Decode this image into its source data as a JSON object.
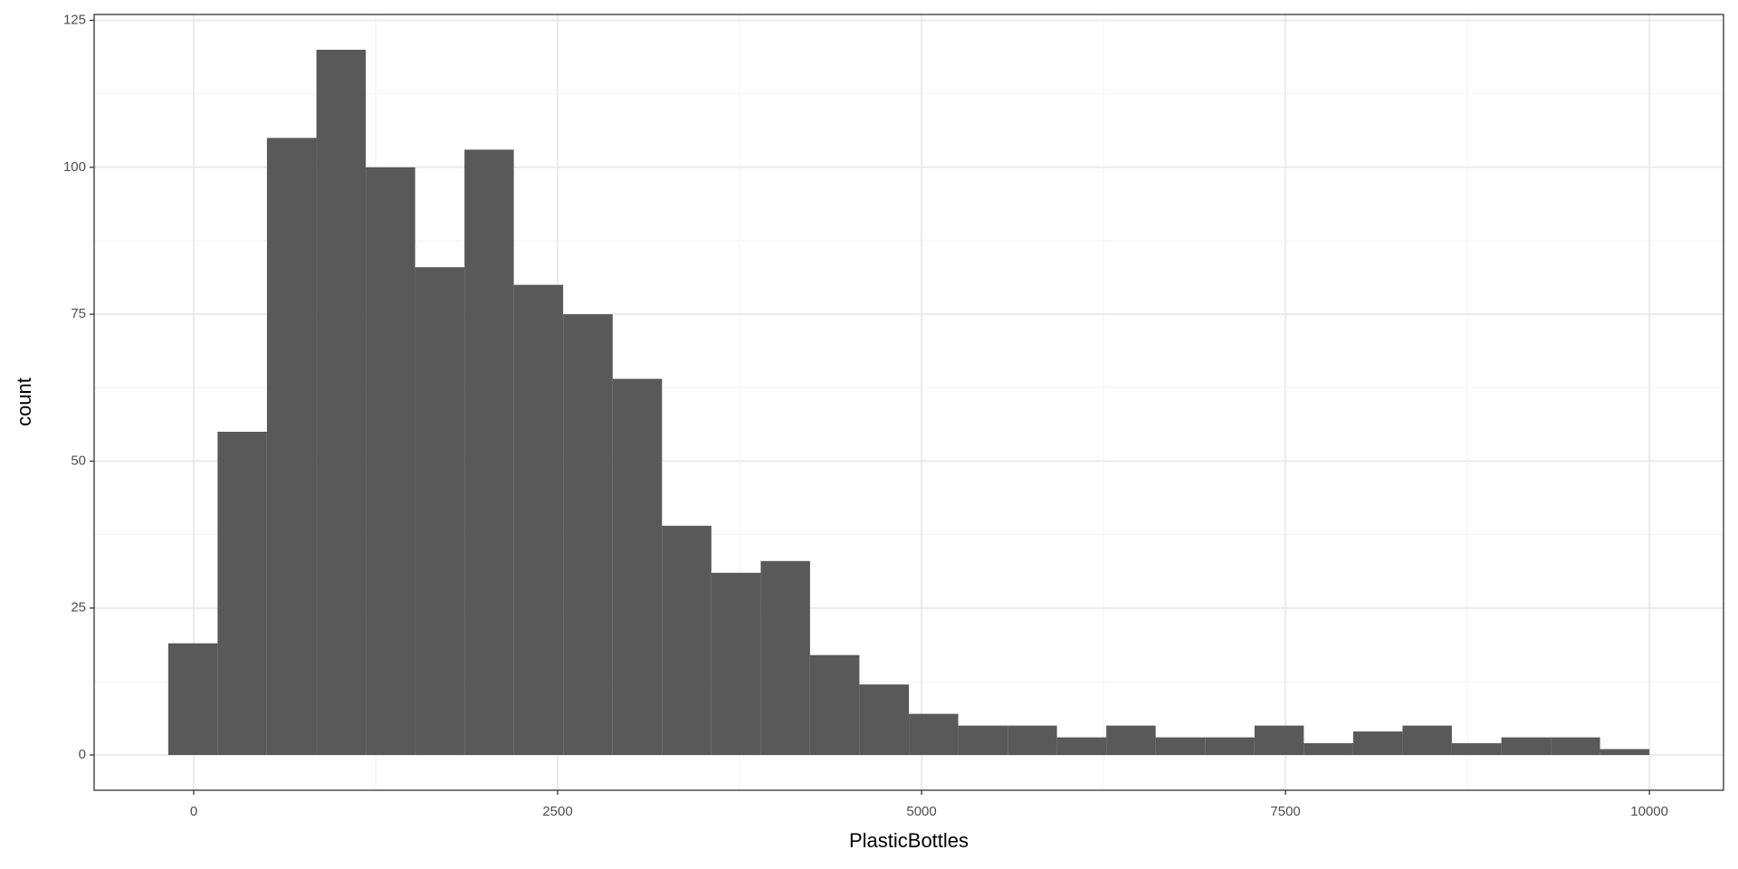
{
  "chart_data": {
    "type": "histogram",
    "x_label": "PlasticBottles",
    "y_label": "count",
    "bins": [
      -175,
      164,
      503,
      843,
      1182,
      1521,
      1860,
      2199,
      2538,
      2878,
      3217,
      3556,
      3895,
      4234,
      4573,
      4913,
      5252,
      5591,
      5930,
      6269,
      6608,
      6948,
      7287,
      7626,
      7965,
      8304,
      8643,
      8983,
      9322,
      9661,
      10000
    ],
    "counts": [
      19,
      55,
      105,
      120,
      100,
      83,
      103,
      80,
      75,
      64,
      39,
      31,
      33,
      17,
      12,
      7,
      5,
      5,
      3,
      5,
      3,
      3,
      5,
      2,
      4,
      5,
      2,
      3,
      3,
      1
    ],
    "color": "#595959",
    "xlim": [
      -684,
      10509
    ],
    "xticks": [
      0,
      2500,
      5000,
      7500,
      10000
    ],
    "ylim": [
      -6,
      126
    ],
    "yticks": [
      0,
      25,
      50,
      75,
      100,
      125
    ],
    "grid": true
  }
}
